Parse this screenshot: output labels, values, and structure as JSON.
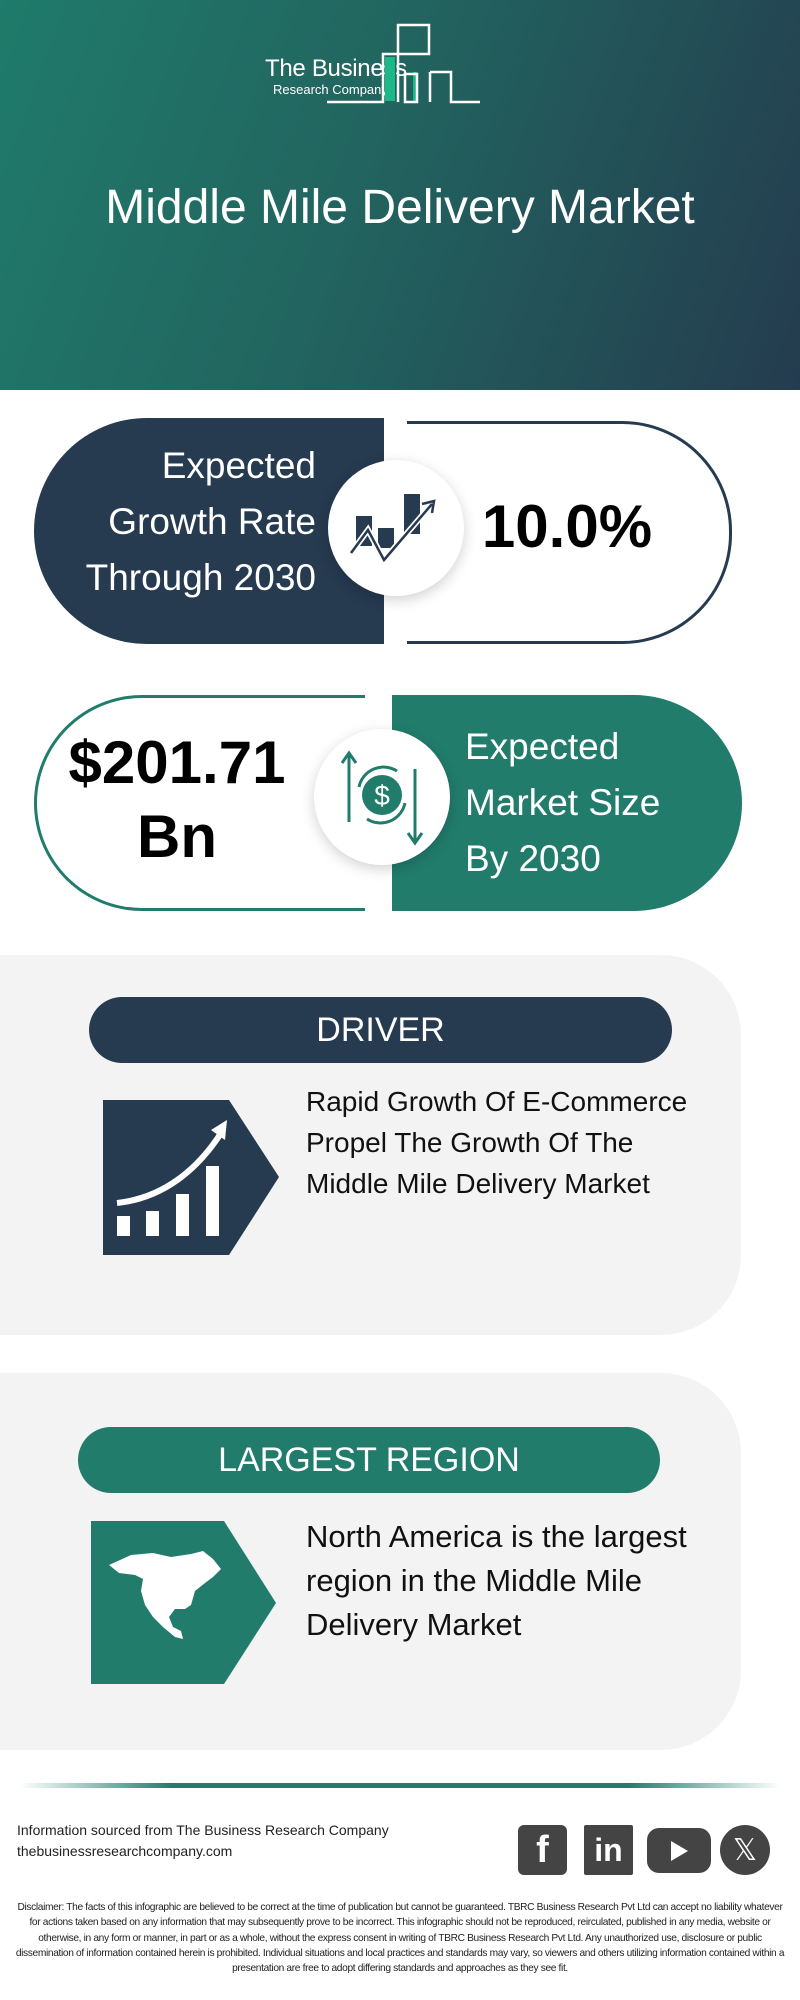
{
  "header": {
    "logo_line1": "The Business",
    "logo_line2": "Research Company",
    "title": "Middle Mile Delivery Market"
  },
  "growth": {
    "label_lines": [
      "Expected",
      "Growth Rate",
      "Through 2030"
    ],
    "value": "10.0%",
    "icon": "growth-chart-icon"
  },
  "market_size": {
    "value_lines": [
      "$201.71",
      "Bn"
    ],
    "label_lines": [
      "Expected",
      "Market Size",
      "By 2030"
    ],
    "icon": "dollar-exchange-icon"
  },
  "driver": {
    "heading": "DRIVER",
    "text_lines": [
      "Rapid Growth Of E-Commerce",
      "Propel The Growth Of The",
      "Middle Mile Delivery Market"
    ],
    "icon": "rising-bar-chart-icon"
  },
  "region": {
    "heading": "LARGEST REGION",
    "text_lines": [
      "North America is the largest",
      "region in the Middle Mile",
      "Delivery Market"
    ],
    "icon": "north-america-map-icon"
  },
  "footer": {
    "source": "Information sourced from The Business Research Company",
    "website": "thebusinessresearchcompany.com",
    "social": [
      "facebook",
      "linkedin",
      "youtube",
      "x"
    ],
    "disclaimer": "Disclaimer: The facts of this infographic are believed to be correct at the time of publication but cannot be guaranteed. TBRC Business Research Pvt Ltd can accept no liability whatever for actions taken based on any information that may subsequently prove to be incorrect. This infographic should not be reproduced, reirculated, published in any media, website or otherwise, in any form or manner, in part or as a whole, without the express consent in writing of TBRC Business Research Pvt Ltd. Any unauthorized use, disclosure or public dissemination of information contained herein is prohibited. Individual situations and local practices and standards may vary, so viewers and others utilizing information contained within a presentation are free to adopt differing standards and approaches as they see fit."
  },
  "colors": {
    "navy": "#263a50",
    "teal": "#217c6c",
    "panel": "#f3f3f3",
    "logo_accent": "#1db887"
  }
}
